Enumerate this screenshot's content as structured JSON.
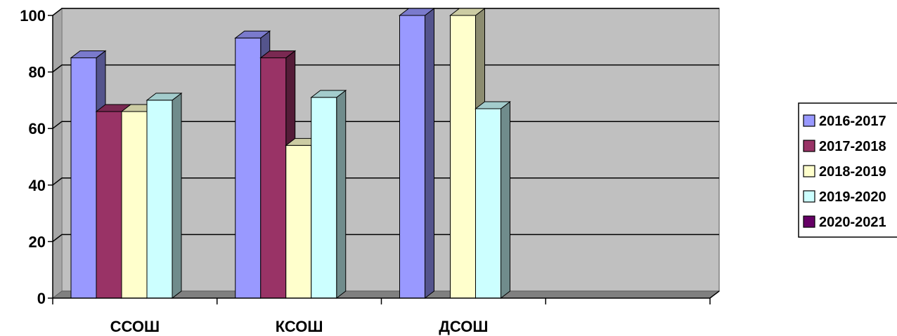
{
  "chart_data": {
    "type": "bar",
    "categories": [
      "ССОШ",
      "КСОШ",
      "ДСОШ"
    ],
    "series": [
      {
        "name": "2016-2017",
        "values": [
          85,
          92,
          100
        ]
      },
      {
        "name": "2017-2018",
        "values": [
          66,
          85,
          null
        ]
      },
      {
        "name": "2018-2019",
        "values": [
          66,
          54,
          100
        ]
      },
      {
        "name": "2019-2020",
        "values": [
          70,
          71,
          67
        ]
      },
      {
        "name": "2020-2021",
        "values": [
          null,
          null,
          null
        ]
      }
    ],
    "ylim": [
      0,
      100
    ],
    "yticks": [
      "0",
      "20",
      "40",
      "60",
      "80",
      "100"
    ],
    "grid": true,
    "legend": "right",
    "style": "3d-clustered-column",
    "colors": [
      "#9999ff",
      "#993366",
      "#ffffcc",
      "#ccffff",
      "#660066"
    ]
  }
}
